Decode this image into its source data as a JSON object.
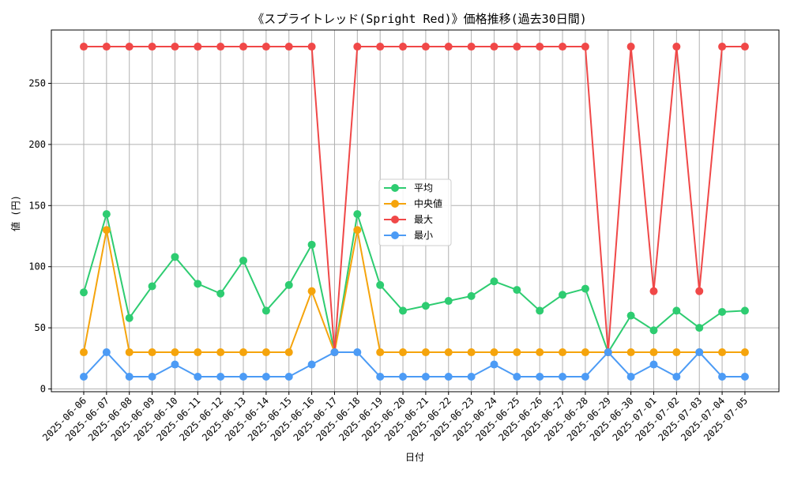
{
  "chart_data": {
    "type": "line",
    "title": "《スプライトレッド(Spright Red)》価格推移(過去30日間)",
    "xlabel": "日付",
    "ylabel": "値 (円)",
    "ylim": [
      -4,
      290
    ],
    "yticks": [
      0,
      50,
      100,
      150,
      200,
      250
    ],
    "grid": true,
    "legend_placement": "center",
    "categories": [
      "2025-06-06",
      "2025-06-07",
      "2025-06-08",
      "2025-06-09",
      "2025-06-10",
      "2025-06-11",
      "2025-06-12",
      "2025-06-13",
      "2025-06-14",
      "2025-06-15",
      "2025-06-16",
      "2025-06-17",
      "2025-06-18",
      "2025-06-19",
      "2025-06-20",
      "2025-06-21",
      "2025-06-22",
      "2025-06-23",
      "2025-06-24",
      "2025-06-25",
      "2025-06-26",
      "2025-06-27",
      "2025-06-28",
      "2025-06-29",
      "2025-06-30",
      "2025-07-01",
      "2025-07-02",
      "2025-07-03",
      "2025-07-04",
      "2025-07-05"
    ],
    "series": [
      {
        "name": "平均",
        "color": "#2ecc71",
        "values": [
          79,
          143,
          58,
          84,
          108,
          86,
          78,
          105,
          64,
          85,
          118,
          30,
          143,
          85,
          64,
          68,
          72,
          76,
          88,
          81,
          64,
          77,
          82,
          30,
          60,
          48,
          64,
          50,
          63,
          64
        ]
      },
      {
        "name": "中央値",
        "color": "#f5a40c",
        "values": [
          30,
          130,
          30,
          30,
          30,
          30,
          30,
          30,
          30,
          30,
          80,
          30,
          130,
          30,
          30,
          30,
          30,
          30,
          30,
          30,
          30,
          30,
          30,
          30,
          30,
          30,
          30,
          30,
          30,
          30
        ]
      },
      {
        "name": "最大",
        "color": "#f04848",
        "values": [
          280,
          280,
          280,
          280,
          280,
          280,
          280,
          280,
          280,
          280,
          280,
          30,
          280,
          280,
          280,
          280,
          280,
          280,
          280,
          280,
          280,
          280,
          280,
          30,
          280,
          80,
          280,
          80,
          280,
          280
        ]
      },
      {
        "name": "最小",
        "color": "#4c9bf5",
        "values": [
          10,
          30,
          10,
          10,
          20,
          10,
          10,
          10,
          10,
          10,
          20,
          30,
          30,
          10,
          10,
          10,
          10,
          10,
          20,
          10,
          10,
          10,
          10,
          30,
          10,
          20,
          10,
          30,
          10,
          10
        ]
      }
    ]
  }
}
